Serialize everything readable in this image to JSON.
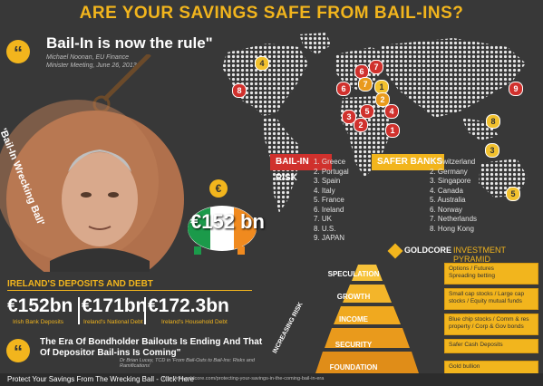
{
  "title": "ARE YOUR SAVINGS SAFE FROM BAIL-INS?",
  "quote1": {
    "text": "Bail-In is now the rule\"",
    "author": "Michael Noonan, EU Finance",
    "occasion": "Minister Meeting, June 26, 2013"
  },
  "wrecking_ball": {
    "label": "'Bail-In Wrecking Ball'"
  },
  "piggy": {
    "coin": "€",
    "amount": "€152 bn"
  },
  "bail_in_risk": {
    "label": "BAIL-IN RISK",
    "items": [
      "1. Greece",
      "2. Portugal",
      "3. Spain",
      "4. Italy",
      "5. France",
      "6. Ireland",
      "7. UK",
      "8. U.S.",
      "9. JAPAN"
    ]
  },
  "safer_banks": {
    "label": "SAFER BANKS",
    "items": [
      "1. Switzerland",
      "2. Germany",
      "3. Singapore",
      "4. Canada",
      "5. Australia",
      "6. Norway",
      "7. Netherlands",
      "8. Hong Kong"
    ]
  },
  "pins": [
    {
      "n": "4",
      "kind": "yellowp"
    },
    {
      "n": "8",
      "kind": "red"
    },
    {
      "n": "6",
      "kind": "red"
    },
    {
      "n": "7",
      "kind": "red"
    },
    {
      "n": "7",
      "kind": "orange"
    },
    {
      "n": "1",
      "kind": "yellowp"
    },
    {
      "n": "6",
      "kind": "red"
    },
    {
      "n": "2",
      "kind": "orange"
    },
    {
      "n": "5",
      "kind": "red"
    },
    {
      "n": "3",
      "kind": "red"
    },
    {
      "n": "4",
      "kind": "red"
    },
    {
      "n": "1",
      "kind": "red"
    },
    {
      "n": "2",
      "kind": "red"
    },
    {
      "n": "9",
      "kind": "red"
    },
    {
      "n": "3",
      "kind": "yellowp"
    },
    {
      "n": "8",
      "kind": "yellowp"
    },
    {
      "n": "5",
      "kind": "yellowp"
    }
  ],
  "pyramid": {
    "brand": "GOLDCORE",
    "title": "INVESTMENT PYRAMID",
    "axis_label": "INCREASING RISK",
    "tiers": [
      {
        "name": "SPECULATION",
        "desc": "Options / Futures\nSpreading betting"
      },
      {
        "name": "GROWTH",
        "desc": "Small cap stocks / Large cap\nstocks / Equity mutual funds"
      },
      {
        "name": "INCOME",
        "desc": "Blue chip stocks / Comm & res\nproperty / Corp & Gov bonds"
      },
      {
        "name": "SECURITY",
        "desc": "Safer Cash Deposits"
      },
      {
        "name": "FOUNDATION",
        "desc": "Gold bullion"
      }
    ]
  },
  "ireland": {
    "heading": "IRELAND'S DEPOSITS AND DEBT",
    "items": [
      {
        "value": "€152bn",
        "label": "Irish Bank Deposits"
      },
      {
        "value": "€171bn",
        "label": "Ireland's National Debt"
      },
      {
        "value": "€172.3bn",
        "label": "Ireland's Household Debt"
      }
    ]
  },
  "quote2": {
    "text": "The Era Of Bondholder Bailouts Is Ending And That Of Depositor Bail-ins Is Coming\"",
    "author": "Dr Brian Lucey, TCD in 'From Bail-Outs to Bail-Ins: Risks and Ramifications'"
  },
  "footer": {
    "text": "Protect Your Savings From The Wrecking Ball - Click Here",
    "url": "http://info.goldcore.com/protecting-your-savings-in-the-coming-bail-in-era"
  }
}
